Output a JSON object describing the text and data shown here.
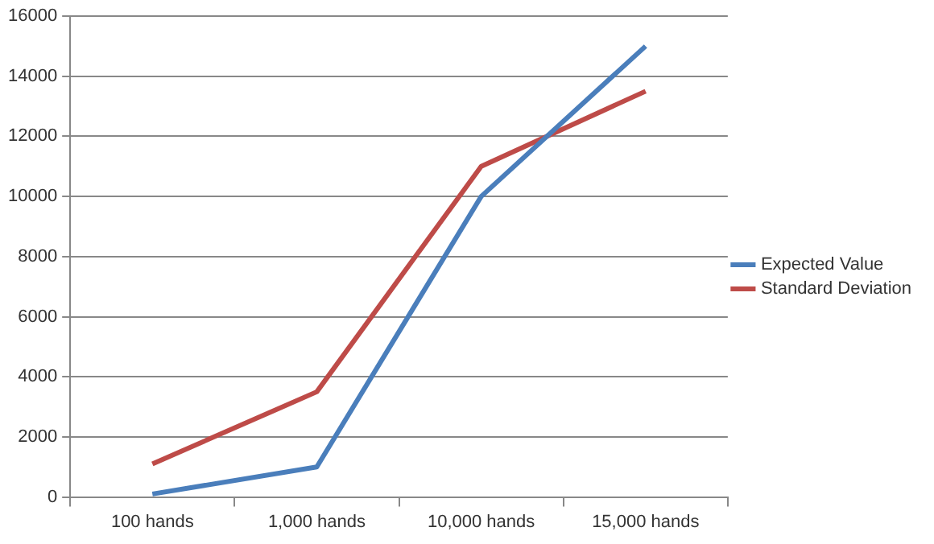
{
  "chart_data": {
    "type": "line",
    "categories": [
      "100 hands",
      "1,000 hands",
      "10,000 hands",
      "15,000 hands"
    ],
    "series": [
      {
        "name": "Expected Value",
        "color": "#4a7ebb",
        "values": [
          100,
          1000,
          10000,
          15000
        ]
      },
      {
        "name": "Standard Deviation",
        "color": "#be4b48",
        "values": [
          1100,
          3500,
          11000,
          13500
        ]
      }
    ],
    "ylim": [
      0,
      16000
    ],
    "yticks": [
      0,
      2000,
      4000,
      6000,
      8000,
      10000,
      12000,
      14000,
      16000
    ],
    "grid": "y",
    "legend": "right",
    "marker": "none",
    "line_style": "solid"
  }
}
